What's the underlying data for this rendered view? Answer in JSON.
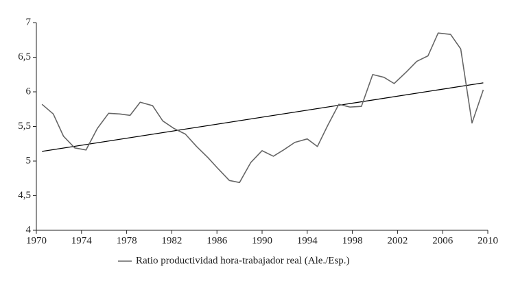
{
  "chart_data": {
    "type": "line",
    "x": [
      1970.5,
      1971.5,
      1972.4,
      1973.4,
      1974.4,
      1975.4,
      1976.4,
      1977.4,
      1978.3,
      1979.2,
      1980.3,
      1981.2,
      1982.2,
      1983.2,
      1984.2,
      1985.2,
      1986.1,
      1987.1,
      1988.0,
      1989.0,
      1990.0,
      1991.0,
      1991.9,
      1992.9,
      1994.0,
      1994.9,
      1995.8,
      1996.8,
      1997.8,
      1998.8,
      1999.8,
      2000.8,
      2001.7,
      2002.8,
      2003.7,
      2004.7,
      2005.6,
      2006.7,
      2007.6,
      2008.6,
      2009.6
    ],
    "series": [
      {
        "name": "Ratio productividad hora-trabajador real (Ale./Esp.)",
        "color": "#666666",
        "values": [
          5.82,
          5.68,
          5.36,
          5.19,
          5.16,
          5.47,
          5.69,
          5.68,
          5.66,
          5.85,
          5.8,
          5.58,
          5.47,
          5.39,
          5.21,
          5.05,
          4.89,
          4.72,
          4.69,
          4.98,
          5.15,
          5.07,
          5.16,
          5.27,
          5.32,
          5.21,
          5.51,
          5.82,
          5.78,
          5.79,
          6.25,
          6.21,
          6.12,
          6.29,
          6.44,
          6.52,
          6.85,
          6.83,
          6.62,
          5.55,
          6.03
        ]
      }
    ],
    "trend": {
      "color": "#000000",
      "x": [
        1970.5,
        2009.6
      ],
      "values": [
        5.14,
        6.13
      ]
    },
    "xlim": [
      1970,
      2010
    ],
    "xticks": [
      1970,
      1974,
      1978,
      1982,
      1986,
      1990,
      1994,
      1998,
      2002,
      2006,
      2010
    ],
    "ylim": [
      4,
      7
    ],
    "yticks": [
      4,
      {
        "value": 4.5,
        "label": "4,5"
      },
      5,
      {
        "value": 5.5,
        "label": "5,5"
      },
      6,
      {
        "value": 6.5,
        "label": "6,5"
      },
      7
    ],
    "legend": "bottom",
    "grid": false
  }
}
